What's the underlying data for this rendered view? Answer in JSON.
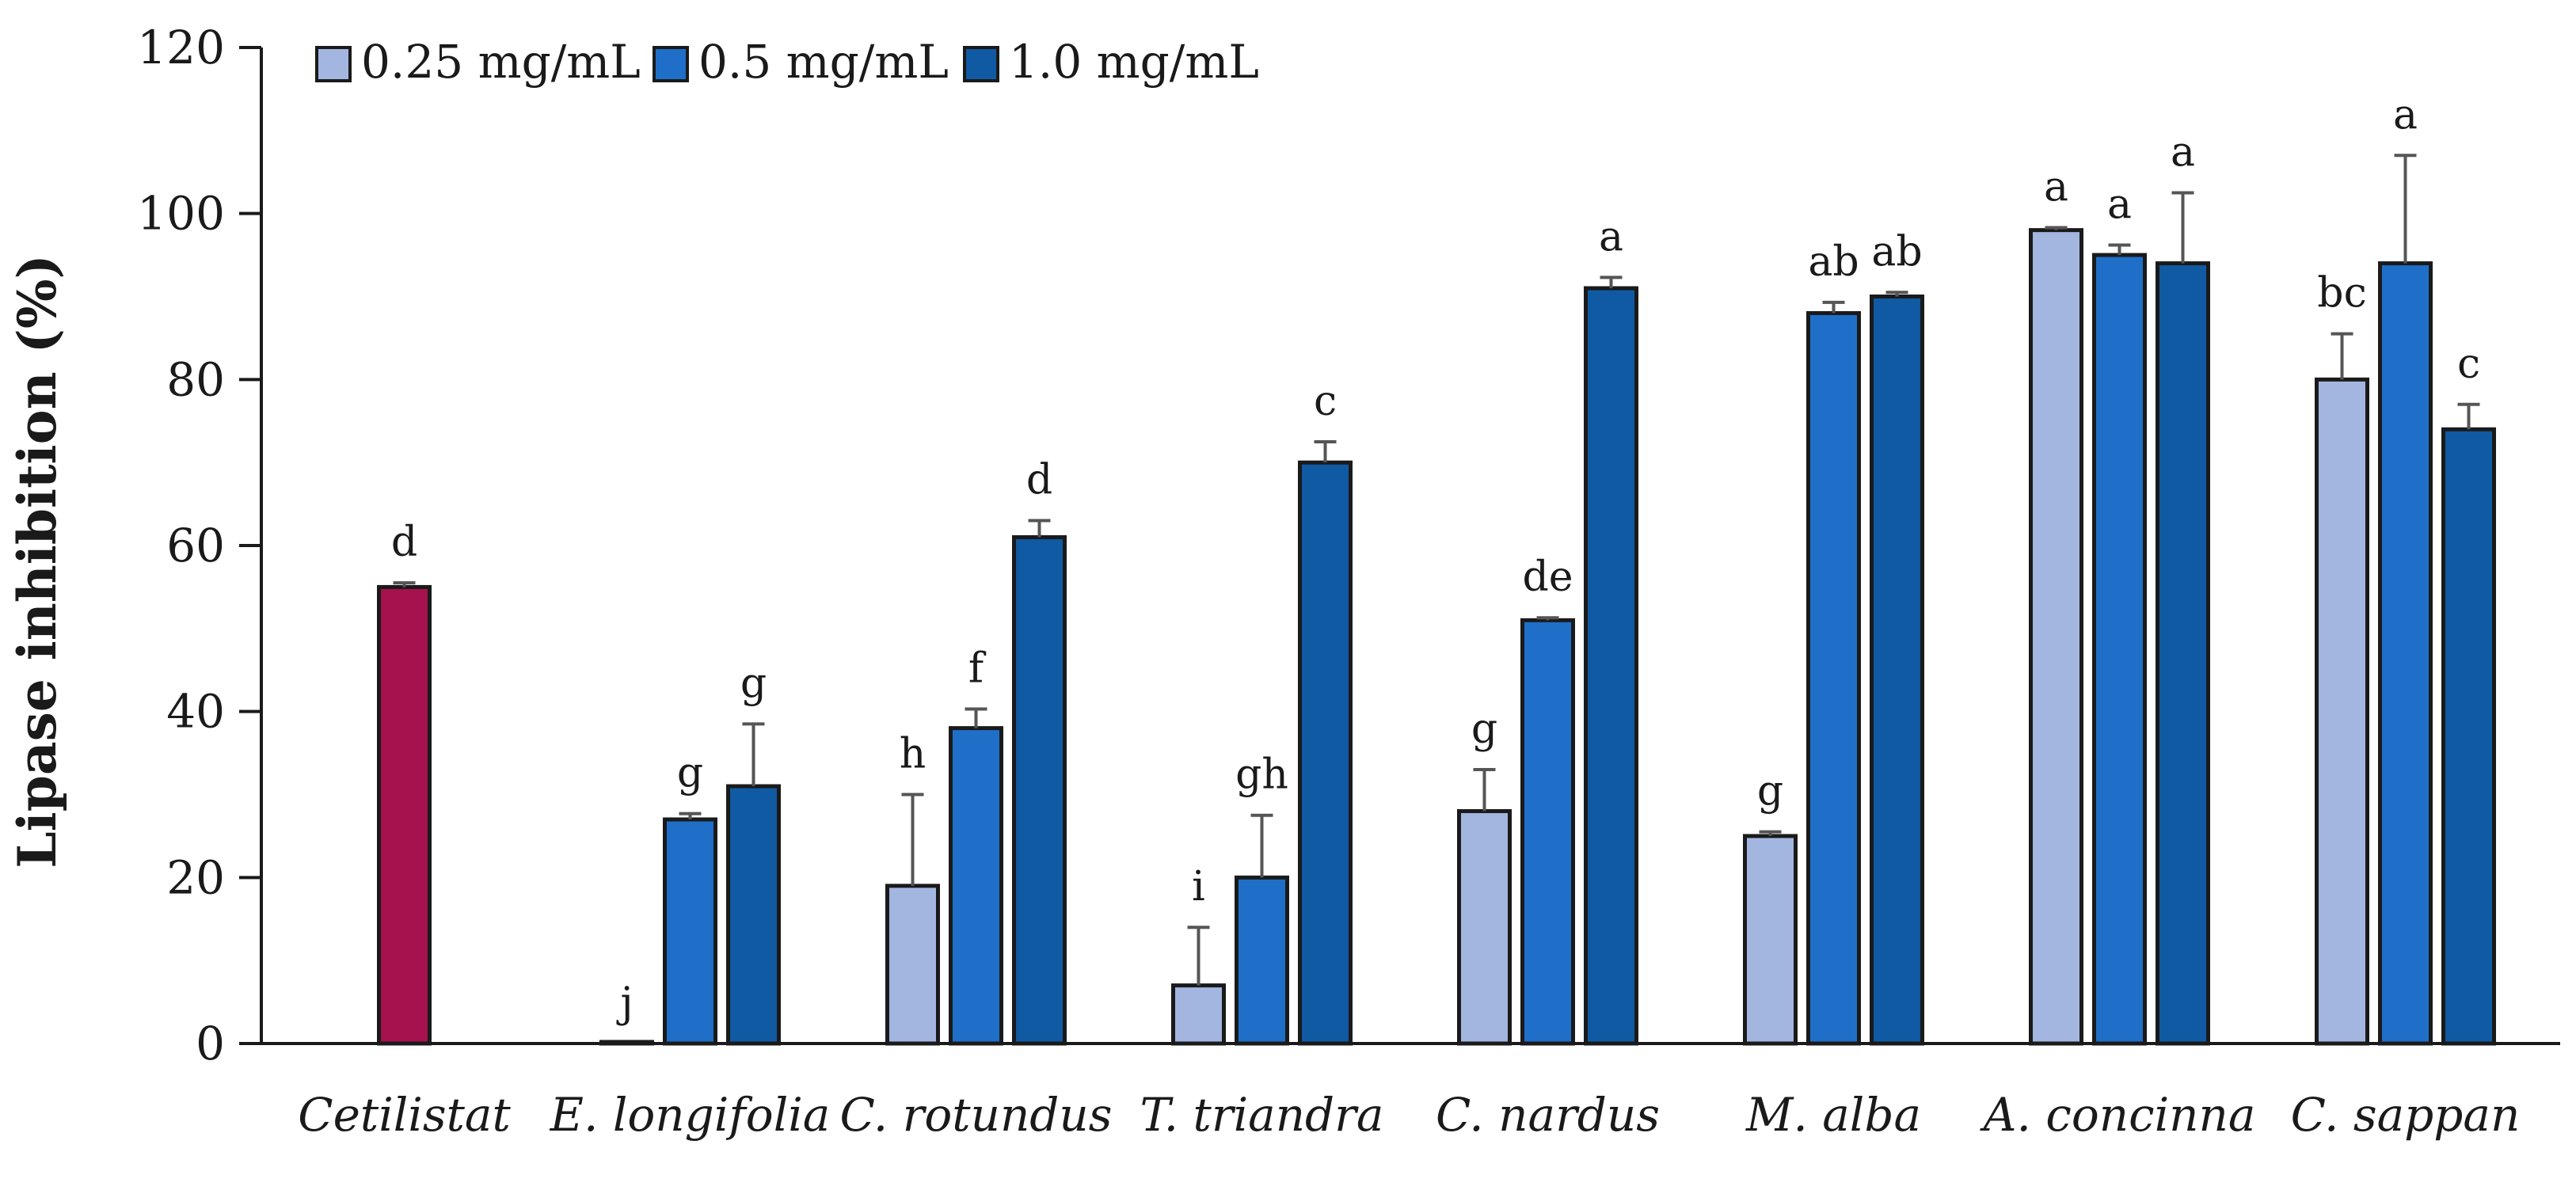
{
  "chart_data": {
    "type": "bar",
    "title": "",
    "xlabel": "",
    "ylabel": "Lipase inhibition (%)",
    "ylim": [
      0,
      120
    ],
    "yticks": [
      0,
      20,
      40,
      60,
      80,
      100,
      120
    ],
    "grid": false,
    "legend_position": "top-left",
    "categories": [
      "Cetilistat",
      "E. longifolia",
      "C. rotundus",
      "T. triandra",
      "C. nardus",
      "M. alba",
      "A. concinna",
      "C. sappan"
    ],
    "reference": {
      "name": "Cetilistat",
      "value": 55,
      "error": 0.5,
      "label": "d",
      "color": "#a5124e"
    },
    "series": [
      {
        "name": "0.25 mg/mL",
        "color": "#a3b6e0",
        "values": [
          null,
          0,
          19,
          7,
          28,
          25,
          98,
          80
        ],
        "errors": [
          null,
          0,
          11,
          7,
          5,
          0.5,
          0.3,
          5.5
        ],
        "labels": [
          null,
          "j",
          "h",
          "i",
          "g",
          "g",
          "a",
          "bc"
        ]
      },
      {
        "name": "0.5 mg/mL",
        "color": "#1f6fc8",
        "values": [
          null,
          27,
          38,
          20,
          51,
          88,
          95,
          94
        ],
        "errors": [
          null,
          0.7,
          2.3,
          7.5,
          0.3,
          1.3,
          1.2,
          13
        ],
        "labels": [
          null,
          "g",
          "f",
          "gh",
          "de",
          "ab",
          "a",
          "a"
        ]
      },
      {
        "name": "1.0 mg/mL",
        "color": "#0f5aa3",
        "values": [
          null,
          31,
          61,
          70,
          91,
          90,
          94,
          74
        ],
        "errors": [
          null,
          7.5,
          2,
          2.5,
          1.3,
          0.5,
          8.5,
          3
        ],
        "labels": [
          null,
          "g",
          "d",
          "c",
          "a",
          "ab",
          "a",
          "c"
        ]
      }
    ]
  }
}
